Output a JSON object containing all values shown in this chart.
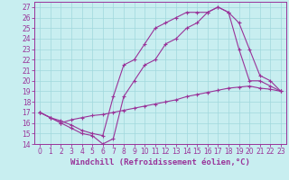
{
  "bg_color": "#c8eef0",
  "grid_color": "#a0d8dc",
  "line_color": "#993399",
  "xlim": [
    -0.5,
    23.5
  ],
  "ylim": [
    14,
    27.5
  ],
  "xticks": [
    0,
    1,
    2,
    3,
    4,
    5,
    6,
    7,
    8,
    9,
    10,
    11,
    12,
    13,
    14,
    15,
    16,
    17,
    18,
    19,
    20,
    21,
    22,
    23
  ],
  "yticks": [
    14,
    15,
    16,
    17,
    18,
    19,
    20,
    21,
    22,
    23,
    24,
    25,
    26,
    27
  ],
  "xlabel": "Windchill (Refroidissement éolien,°C)",
  "tick_fontsize": 5.5,
  "xlabel_fontsize": 6.5,
  "line1_x": [
    0,
    1,
    2,
    3,
    4,
    5,
    6,
    7,
    8,
    9,
    10,
    11,
    12,
    13,
    14,
    15,
    16,
    17,
    18,
    19,
    20,
    21,
    22,
    23
  ],
  "line1_y": [
    17.0,
    16.5,
    16.0,
    15.5,
    15.0,
    14.8,
    14.0,
    14.5,
    18.5,
    20.0,
    21.5,
    22.0,
    23.5,
    24.0,
    25.0,
    25.5,
    26.5,
    27.0,
    26.5,
    25.5,
    23.0,
    20.5,
    20.0,
    19.0
  ],
  "line2_x": [
    0,
    1,
    2,
    3,
    4,
    5,
    6,
    7,
    8,
    9,
    10,
    11,
    12,
    13,
    14,
    15,
    16,
    17,
    18,
    19,
    20,
    21,
    22,
    23
  ],
  "line2_y": [
    17.0,
    16.5,
    16.2,
    15.8,
    15.3,
    15.0,
    14.8,
    18.5,
    21.5,
    22.0,
    23.5,
    25.0,
    25.5,
    26.0,
    26.5,
    26.5,
    26.5,
    27.0,
    26.5,
    23.0,
    20.0,
    20.0,
    19.5,
    19.0
  ],
  "line3_x": [
    0,
    1,
    2,
    3,
    4,
    5,
    6,
    7,
    8,
    9,
    10,
    11,
    12,
    13,
    14,
    15,
    16,
    17,
    18,
    19,
    20,
    21,
    22,
    23
  ],
  "line3_y": [
    17.0,
    16.5,
    16.0,
    16.3,
    16.5,
    16.7,
    16.8,
    17.0,
    17.2,
    17.4,
    17.6,
    17.8,
    18.0,
    18.2,
    18.5,
    18.7,
    18.9,
    19.1,
    19.3,
    19.4,
    19.5,
    19.3,
    19.2,
    19.0
  ]
}
